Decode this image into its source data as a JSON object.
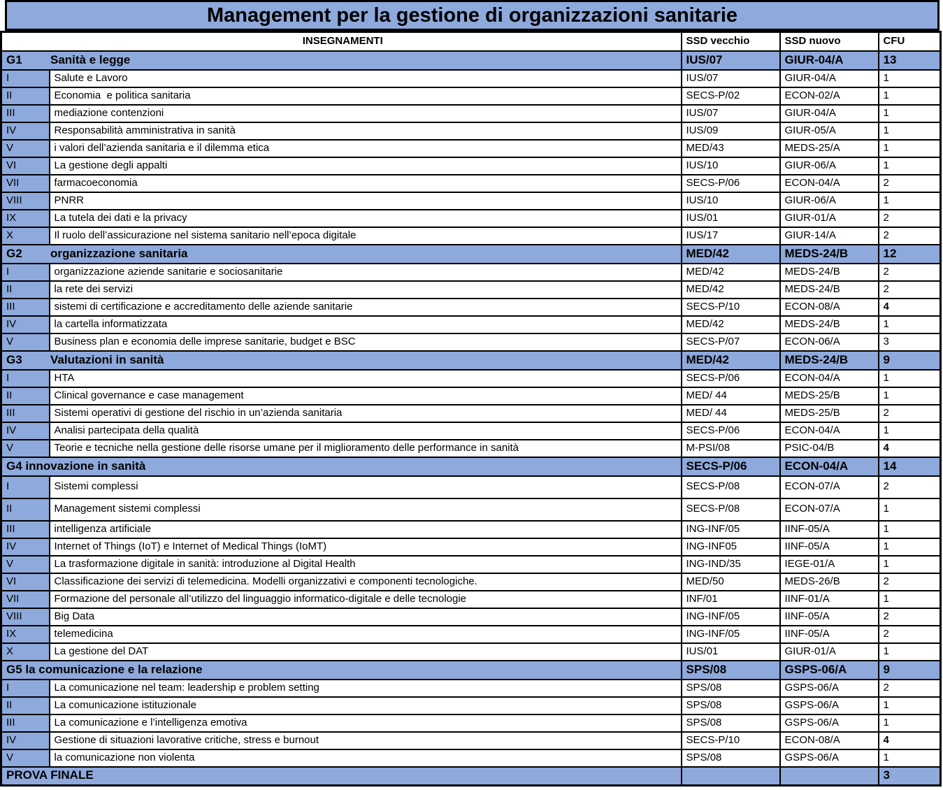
{
  "title": "Management per la gestione di organizzazioni sanitarie",
  "colors": {
    "header_blue": "#8EA9DB",
    "border": "#000000",
    "row_white": "#FFFFFF"
  },
  "columns": {
    "insegnamenti": "INSEGNAMENTI",
    "ssd_old": "SSD vecchio",
    "ssd_new": "SSD nuovo",
    "cfu": "CFU"
  },
  "rows": [
    {
      "type": "group",
      "merged": false,
      "num": "G1",
      "name": "Sanità e legge",
      "ssd_old": "IUS/07",
      "ssd_new": "GIUR-04/A",
      "cfu": "13"
    },
    {
      "type": "item",
      "num": "I",
      "name": "Salute e Lavoro",
      "ssd_old": "IUS/07",
      "ssd_new": "GIUR-04/A",
      "cfu": "1"
    },
    {
      "type": "item",
      "num": "II",
      "name": "Economia  e politica sanitaria",
      "ssd_old": "SECS-P/02",
      "ssd_new": "ECON-02/A",
      "cfu": "1"
    },
    {
      "type": "item",
      "num": "III",
      "name": "mediazione contenzioni",
      "ssd_old": "IUS/07",
      "ssd_new": "GIUR-04/A",
      "cfu": "1"
    },
    {
      "type": "item",
      "num": "IV",
      "name": "Responsabilità amministrativa in sanità",
      "ssd_old": "IUS/09",
      "ssd_new": "GIUR-05/A",
      "cfu": "1"
    },
    {
      "type": "item",
      "num": "V",
      "name": "i valori dell’azienda sanitaria e il dilemma etica",
      "ssd_old": "MED/43",
      "ssd_new": "MEDS-25/A",
      "cfu": "1"
    },
    {
      "type": "item",
      "num": "VI",
      "name": "La gestione degli appalti",
      "ssd_old": "IUS/10",
      "ssd_new": "GIUR-06/A",
      "cfu": "1"
    },
    {
      "type": "item",
      "num": "VII",
      "name": "farmacoeconomia",
      "ssd_old": "SECS-P/06",
      "ssd_new": "ECON-04/A",
      "cfu": "2"
    },
    {
      "type": "item",
      "num": "VIII",
      "name": "PNRR",
      "ssd_old": "IUS/10",
      "ssd_new": "GIUR-06/A",
      "cfu": "1"
    },
    {
      "type": "item",
      "num": "IX",
      "name": "La tutela dei dati e la privacy",
      "ssd_old": "IUS/01",
      "ssd_new": "GIUR-01/A",
      "cfu": "2"
    },
    {
      "type": "item",
      "num": "X",
      "name": "Il ruolo dell’assicurazione nel sistema sanitario nell’epoca digitale",
      "ssd_old": "IUS/17",
      "ssd_new": "GIUR-14/A",
      "cfu": "2"
    },
    {
      "type": "group",
      "merged": false,
      "num": "G2",
      "name": "organizzazione sanitaria",
      "ssd_old": "MED/42",
      "ssd_new": "MEDS-24/B",
      "cfu": "12"
    },
    {
      "type": "item",
      "num": "I",
      "name": "organizzazione aziende sanitarie e sociosanitarie",
      "ssd_old": "MED/42",
      "ssd_new": "MEDS-24/B",
      "cfu": "2"
    },
    {
      "type": "item",
      "num": "II",
      "name": "la rete dei servizi",
      "ssd_old": "MED/42",
      "ssd_new": "MEDS-24/B",
      "cfu": "2"
    },
    {
      "type": "item",
      "num": "III",
      "name": "sistemi di certificazione e accreditamento delle aziende sanitarie",
      "ssd_old": "SECS-P/10",
      "ssd_new": "ECON-08/A",
      "cfu": "4",
      "cfu_bold": true
    },
    {
      "type": "item",
      "num": "IV",
      "name": "la cartella informatizzata",
      "ssd_old": "MED/42",
      "ssd_new": "MEDS-24/B",
      "cfu": "1"
    },
    {
      "type": "item",
      "num": "V",
      "name": "Business plan e economia delle imprese sanitarie, budget e BSC",
      "ssd_old": "SECS-P/07",
      "ssd_new": "ECON-06/A",
      "cfu": "3"
    },
    {
      "type": "group",
      "merged": false,
      "num": "G3",
      "name": "Valutazioni in sanità",
      "ssd_old": "MED/42",
      "ssd_new": "MEDS-24/B",
      "cfu": "9"
    },
    {
      "type": "item",
      "num": "I",
      "name": "HTA",
      "ssd_old": "SECS-P/06",
      "ssd_new": "ECON-04/A",
      "cfu": "1"
    },
    {
      "type": "item",
      "num": "II",
      "name": "Clinical governance e case management",
      "ssd_old": "MED/ 44",
      "ssd_new": "MEDS-25/B",
      "cfu": "1"
    },
    {
      "type": "item",
      "num": "III",
      "name": "Sistemi operativi di gestione del rischio in un’azienda sanitaria",
      "ssd_old": "MED/ 44",
      "ssd_new": "MEDS-25/B",
      "cfu": "2"
    },
    {
      "type": "item",
      "num": "IV",
      "name": "Analisi partecipata della qualità",
      "ssd_old": "SECS-P/06",
      "ssd_new": "ECON-04/A",
      "cfu": "1"
    },
    {
      "type": "item",
      "num": "V",
      "name": "Teorie e tecniche nella gestione delle risorse umane per il miglioramento delle performance in sanità",
      "ssd_old": "M-PSI/08",
      "ssd_new": "PSIC-04/B",
      "cfu": "4",
      "cfu_bold": true
    },
    {
      "type": "group",
      "merged": true,
      "label": "G4 innovazione in sanità",
      "ssd_old": "SECS-P/06",
      "ssd_new": "ECON-04/A",
      "cfu": "14"
    },
    {
      "type": "item",
      "num": "I",
      "name": "Sistemi complessi",
      "ssd_old": "SECS-P/08",
      "ssd_new": "ECON-07/A",
      "cfu": "2",
      "tall": true
    },
    {
      "type": "item",
      "num": "II",
      "name": "Management sistemi complessi",
      "ssd_old": "SECS-P/08",
      "ssd_new": "ECON-07/A",
      "cfu": "1",
      "tall": true
    },
    {
      "type": "item",
      "num": "III",
      "name": "intelligenza artificiale",
      "ssd_old": "ING-INF/05",
      "ssd_new": "IINF-05/A",
      "cfu": "1"
    },
    {
      "type": "item",
      "num": "IV",
      "name": "Internet of Things (IoT) e Internet of Medical Things (IoMT)",
      "ssd_old": "ING-INF05",
      "ssd_new": "IINF-05/A",
      "cfu": "1"
    },
    {
      "type": "item",
      "num": "V",
      "name": "La trasformazione digitale in sanità: introduzione al Digital Health",
      "ssd_old": "ING-IND/35",
      "ssd_new": "IEGE-01/A",
      "cfu": "1"
    },
    {
      "type": "item",
      "num": "VI",
      "name": "Classificazione dei servizi di telemedicina. Modelli organizzativi e componenti tecnologiche.",
      "ssd_old": "MED/50",
      "ssd_new": "MEDS-26/B",
      "cfu": "2"
    },
    {
      "type": "item",
      "num": "VII",
      "name": "Formazione del personale all’utilizzo del linguaggio informatico-digitale e delle tecnologie",
      "ssd_old": "INF/01",
      "ssd_new": "IINF-01/A",
      "cfu": "1"
    },
    {
      "type": "item",
      "num": "VIII",
      "name": "Big Data",
      "ssd_old": "ING-INF/05",
      "ssd_new": "IINF-05/A",
      "cfu": "2"
    },
    {
      "type": "item",
      "num": "IX",
      "name": "telemedicina",
      "ssd_old": "ING-INF/05",
      "ssd_new": "IINF-05/A",
      "cfu": "2"
    },
    {
      "type": "item",
      "num": "X",
      "name": "La gestione del DAT",
      "ssd_old": "IUS/01",
      "ssd_new": "GIUR-01/A",
      "cfu": "1"
    },
    {
      "type": "group",
      "merged": true,
      "label": "G5 la comunicazione e la relazione",
      "ssd_old": "SPS/08",
      "ssd_new": "GSPS-06/A",
      "cfu": "9"
    },
    {
      "type": "item",
      "num": "I",
      "name": "La comunicazione nel team: leadership e problem setting",
      "ssd_old": "SPS/08",
      "ssd_new": "GSPS-06/A",
      "cfu": "2"
    },
    {
      "type": "item",
      "num": "II",
      "name": "La comunicazione istituzionale",
      "ssd_old": "SPS/08",
      "ssd_new": "GSPS-06/A",
      "cfu": "1"
    },
    {
      "type": "item",
      "num": "III",
      "name": "La comunicazione e l’intelligenza emotiva",
      "ssd_old": "SPS/08",
      "ssd_new": "GSPS-06/A",
      "cfu": "1"
    },
    {
      "type": "item",
      "num": "IV",
      "name": "Gestione di situazioni lavorative critiche, stress e burnout",
      "ssd_old": "SECS-P/10",
      "ssd_new": "ECON-08/A",
      "cfu": "4",
      "cfu_bold": true
    },
    {
      "type": "item",
      "num": "V",
      "name": "la comunicazione non violenta",
      "ssd_old": "SPS/08",
      "ssd_new": "GSPS-06/A",
      "cfu": "1"
    },
    {
      "type": "final",
      "label": "PROVA FINALE",
      "ssd_old": "",
      "ssd_new": "",
      "cfu": "3",
      "cfu_bold": true
    }
  ]
}
